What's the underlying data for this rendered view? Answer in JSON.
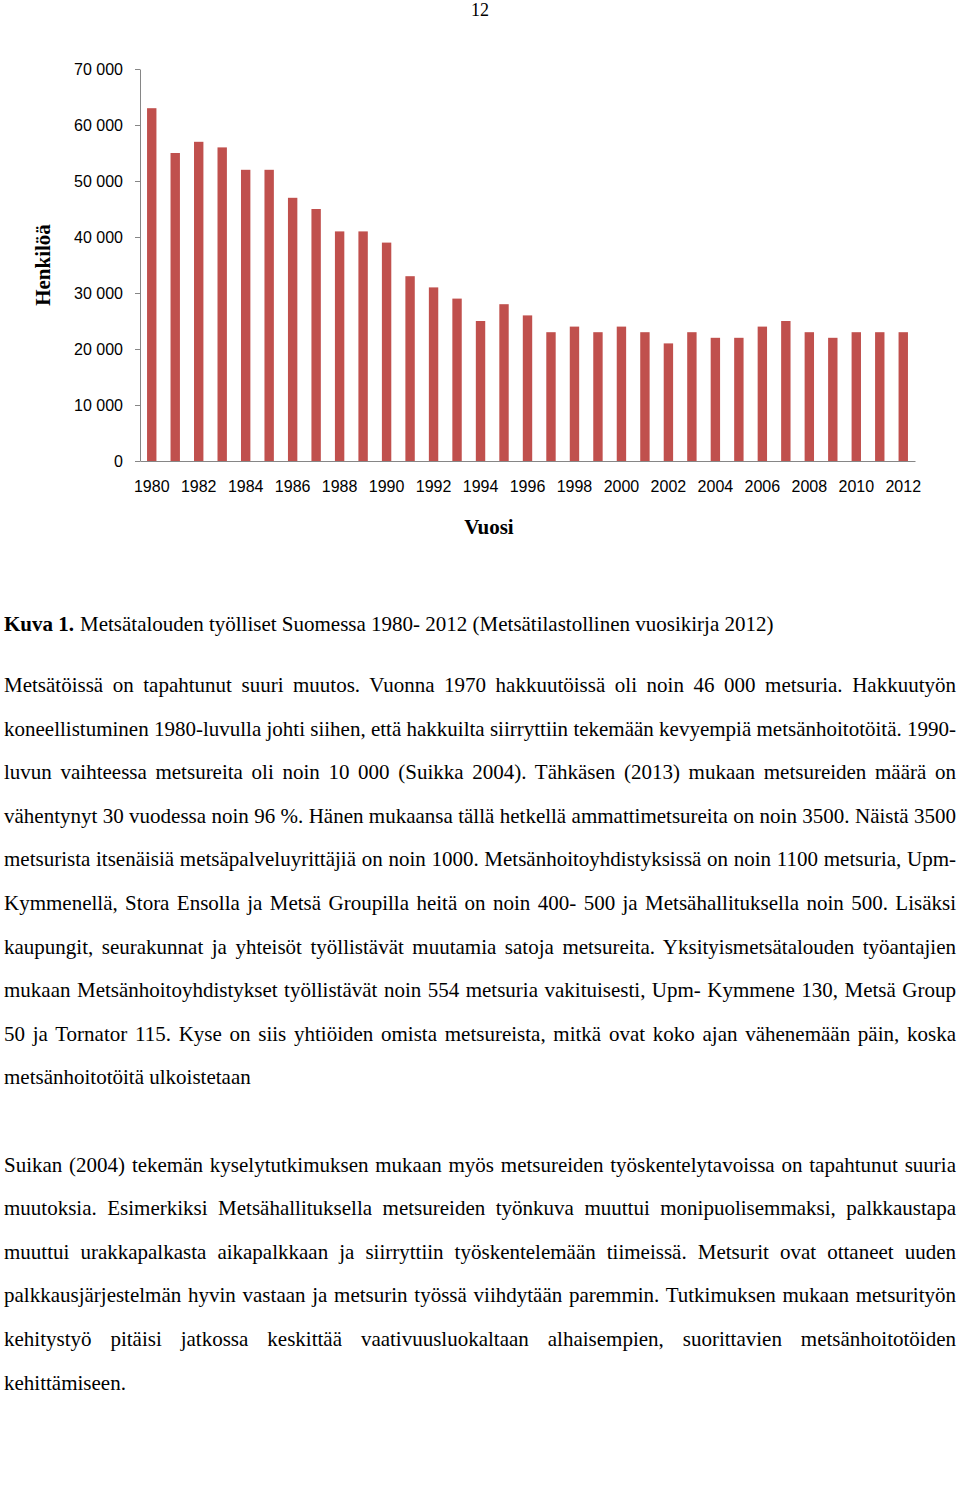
{
  "page_number": "12",
  "chart_data": {
    "type": "bar",
    "categories": [
      "1980",
      null,
      "1982",
      null,
      "1984",
      null,
      "1986",
      null,
      "1988",
      null,
      "1990",
      null,
      "1992",
      null,
      "1994",
      null,
      "1996",
      null,
      "1998",
      null,
      "2000",
      null,
      "2002",
      null,
      "2004",
      null,
      "2006",
      null,
      "2008",
      null,
      "2010",
      null,
      "2012"
    ],
    "values": [
      63000,
      55000,
      57000,
      56000,
      52000,
      52000,
      47000,
      45000,
      41000,
      41000,
      39000,
      33000,
      31000,
      29000,
      25000,
      28000,
      26000,
      23000,
      24000,
      23000,
      24000,
      23000,
      21000,
      23000,
      22000,
      22000,
      24000,
      25000,
      23000,
      22000,
      23000,
      23000,
      23000
    ],
    "color": "#c0504d",
    "x_label": "Vuosi",
    "y_label": "Henkilöä",
    "ylim": [
      0,
      70000
    ],
    "yticks": [
      0,
      {
        "value": 10000,
        "label": "10 000"
      },
      {
        "value": 20000,
        "label": "20 000"
      },
      {
        "value": 30000,
        "label": "30 000"
      },
      {
        "value": 40000,
        "label": "40 000"
      },
      {
        "value": 50000,
        "label": "50 000"
      },
      {
        "value": 60000,
        "label": "60 000"
      },
      {
        "value": 70000,
        "label": "70 000"
      }
    ],
    "grid": false
  },
  "caption": {
    "label": "Kuva 1.",
    "text": "Metsätalouden työlliset Suomessa 1980- 2012 (Metsätilastollinen vuosikirja 2012)"
  },
  "paragraphs": [
    "Metsätöissä on tapahtunut suuri muutos. Vuonna 1970 hakkuutöissä oli noin 46 000 metsuria. Hakkuutyön koneellistuminen 1980-luvulla johti siihen, että hakkuilta siirryttiin tekemään kevyempiä metsänhoitotöitä. 1990-luvun vaihteessa metsureita oli noin 10 000 (Suikka 2004). Tähkäsen (2013) mukaan metsureiden määrä on vähentynyt 30 vuodessa noin 96 %. Hänen mukaansa tällä hetkellä ammattimetsureita on noin 3500. Näistä 3500 metsurista itsenäisiä metsäpalveluyrittäjiä on noin 1000. Metsänhoitoyhdistyksissä on noin 1100 metsuria, Upm- Kymmenellä, Stora Ensolla ja Metsä Groupilla heitä on noin 400- 500 ja Metsähallituksella noin 500. Lisäksi kaupungit, seurakunnat ja yhteisöt työllistävät muutamia satoja metsureita. Yksityismetsätalouden työantajien mukaan Metsänhoitoyhdistykset työllistävät noin 554 metsuria vakituisesti, Upm- Kymmene 130, Metsä Group 50 ja Tornator 115. Kyse on siis yhtiöiden omista metsureista, mitkä ovat koko ajan vähenemään päin, koska metsänhoitotöitä ulkoistetaan",
    "Suikan (2004) tekemän kyselytutkimuksen mukaan myös metsureiden työskentelytavoissa on tapahtunut suuria muutoksia. Esimerkiksi Metsähallituksella metsureiden työnkuva muuttui monipuolisemmaksi, palkkaustapa muuttui urakkapalkasta aikapalkkaan ja siirryttiin työskentelemään tiimeissä. Metsurit ovat ottaneet uuden palkkausjärjestelmän hyvin vastaan ja metsurin työssä viihdytään paremmin. Tutkimuksen mukaan metsurityön kehitystyö pitäisi jatkossa keskittää vaativuusluokaltaan alhaisempien, suorittavien metsänhoitotöiden kehittämiseen."
  ]
}
